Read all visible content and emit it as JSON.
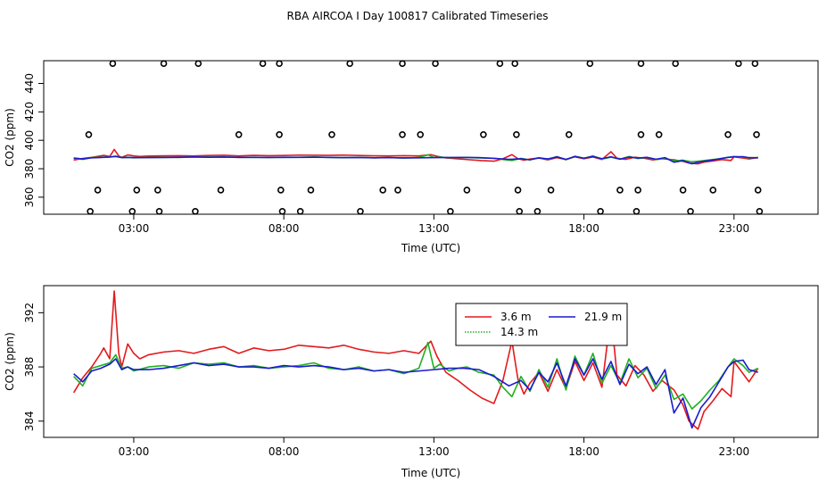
{
  "colors": {
    "red": "#e31a1c",
    "green": "#1fb11f",
    "blue": "#1a1ad0",
    "axis": "#000000"
  },
  "chart_data": [
    {
      "type": "scatter+line",
      "title": "RBA AIRCOA I  Day 100817  Calibrated Timeseries",
      "xlabel": "Time (UTC)",
      "ylabel": "CO2 (ppm)",
      "xlim": [
        0.0,
        25.8
      ],
      "ylim": [
        348,
        456
      ],
      "xticks": [
        3,
        8,
        13,
        18,
        23
      ],
      "xtick_labels": [
        "03:00",
        "08:00",
        "13:00",
        "18:00",
        "23:00"
      ],
      "yticks": [
        360,
        380,
        400,
        420,
        440
      ],
      "ytick_labels": [
        "360",
        "380",
        "400",
        "420",
        "440"
      ],
      "scatter": {
        "marker": "open-circle",
        "x": [
          2.3,
          4.0,
          5.15,
          7.3,
          7.85,
          10.2,
          11.95,
          13.05,
          15.2,
          15.7,
          18.2,
          19.9,
          21.05,
          23.15,
          23.7,
          1.5,
          6.5,
          7.85,
          9.6,
          11.95,
          12.55,
          14.65,
          15.75,
          17.5,
          19.9,
          20.5,
          22.8,
          23.75,
          1.8,
          3.1,
          3.8,
          5.9,
          7.9,
          8.9,
          11.3,
          11.8,
          14.1,
          15.8,
          16.9,
          19.2,
          19.8,
          21.3,
          22.3,
          23.8,
          1.55,
          2.95,
          3.85,
          5.05,
          7.95,
          8.55,
          10.55,
          13.55,
          15.85,
          16.45,
          18.55,
          19.75,
          21.55,
          23.85
        ],
        "y": [
          454,
          454,
          454,
          454,
          454,
          454,
          454,
          454,
          454,
          454,
          454,
          454,
          454,
          454,
          454,
          404,
          404,
          404,
          404,
          404,
          404,
          404,
          404,
          404,
          404,
          404,
          404,
          404,
          365,
          365,
          365,
          365,
          365,
          365,
          365,
          365,
          365,
          365,
          365,
          365,
          365,
          365,
          365,
          365,
          350,
          350,
          350,
          350,
          350,
          350,
          350,
          350,
          350,
          350,
          350,
          350,
          350,
          350
        ]
      },
      "series": [
        {
          "name": "3.6 m",
          "color": "#e31a1c"
        },
        {
          "name": "14.3 m",
          "color": "#1fb11f"
        },
        {
          "name": "21.9 m",
          "color": "#1a1ad0"
        }
      ]
    },
    {
      "type": "line",
      "title": "",
      "xlabel": "Time (UTC)",
      "ylabel": "CO2 (ppm)",
      "xlim": [
        0.0,
        25.8
      ],
      "ylim": [
        382.8,
        394.0
      ],
      "xticks": [
        3,
        8,
        13,
        18,
        23
      ],
      "xtick_labels": [
        "03:00",
        "08:00",
        "13:00",
        "18:00",
        "23:00"
      ],
      "yticks": [
        384,
        388,
        392
      ],
      "ytick_labels": [
        "384",
        "388",
        "392"
      ],
      "legend": {
        "position": "top-center",
        "entries": [
          "3.6 m",
          "21.9 m",
          "14.3 m"
        ]
      },
      "series": [
        {
          "name": "3.6 m",
          "color": "#e31a1c",
          "x": [
            1.0,
            1.3,
            1.6,
            1.9,
            2.0,
            2.2,
            2.35,
            2.5,
            2.6,
            2.8,
            3.0,
            3.2,
            3.5,
            4.0,
            4.5,
            5.0,
            5.5,
            6.0,
            6.5,
            7.0,
            7.5,
            8.0,
            8.5,
            9.0,
            9.5,
            10.0,
            10.5,
            11.0,
            11.5,
            12.0,
            12.5,
            12.9,
            13.1,
            13.4,
            13.8,
            14.2,
            14.6,
            15.0,
            15.3,
            15.6,
            15.8,
            16.0,
            16.2,
            16.5,
            16.8,
            17.1,
            17.4,
            17.7,
            18.0,
            18.3,
            18.6,
            18.9,
            19.1,
            19.4,
            19.7,
            20.0,
            20.3,
            20.6,
            21.0,
            21.3,
            21.5,
            21.8,
            22.0,
            22.3,
            22.6,
            22.9,
            23.0,
            23.3,
            23.5,
            23.8
          ],
          "y": [
            386.1,
            387.2,
            388.0,
            389.0,
            389.4,
            388.6,
            393.6,
            389.0,
            388.0,
            389.7,
            389.0,
            388.6,
            388.9,
            389.1,
            389.2,
            389.0,
            389.3,
            389.5,
            389.0,
            389.4,
            389.2,
            389.3,
            389.6,
            389.5,
            389.4,
            389.6,
            389.3,
            389.1,
            389.0,
            389.2,
            389.0,
            389.9,
            388.8,
            387.6,
            387.0,
            386.3,
            385.7,
            385.3,
            387.0,
            389.9,
            387.1,
            386.0,
            386.8,
            387.6,
            386.2,
            387.8,
            386.4,
            388.4,
            387.0,
            388.3,
            386.5,
            392.0,
            387.4,
            386.6,
            388.1,
            387.4,
            386.2,
            387.0,
            386.3,
            385.2,
            384.0,
            383.4,
            384.7,
            385.5,
            386.4,
            385.8,
            388.4,
            387.5,
            386.9,
            387.9
          ]
        },
        {
          "name": "14.3 m",
          "color": "#1fb11f",
          "x": [
            1.0,
            1.3,
            1.6,
            1.9,
            2.2,
            2.4,
            2.6,
            2.8,
            3.0,
            3.5,
            4.0,
            4.5,
            5.0,
            5.5,
            6.0,
            6.5,
            7.0,
            7.5,
            8.0,
            8.5,
            9.0,
            9.5,
            10.0,
            10.5,
            11.0,
            11.5,
            12.0,
            12.5,
            12.8,
            13.0,
            13.2,
            13.5,
            13.8,
            14.1,
            14.5,
            15.0,
            15.3,
            15.6,
            15.9,
            16.2,
            16.5,
            16.8,
            17.1,
            17.4,
            17.7,
            18.0,
            18.3,
            18.6,
            18.9,
            19.2,
            19.5,
            19.8,
            20.1,
            20.4,
            20.7,
            21.0,
            21.3,
            21.6,
            21.9,
            22.2,
            22.5,
            22.8,
            23.0,
            23.3,
            23.5,
            23.8
          ],
          "y": [
            387.3,
            386.6,
            387.9,
            388.1,
            388.3,
            388.9,
            387.9,
            388.0,
            387.7,
            388.0,
            388.1,
            387.9,
            388.3,
            388.2,
            388.3,
            388.0,
            388.1,
            387.9,
            388.0,
            388.1,
            388.3,
            387.9,
            387.8,
            388.0,
            387.7,
            387.8,
            387.5,
            387.9,
            389.8,
            387.9,
            388.2,
            387.7,
            387.9,
            388.0,
            387.6,
            387.4,
            386.5,
            385.8,
            387.3,
            386.2,
            387.8,
            386.5,
            388.6,
            386.3,
            388.8,
            387.4,
            389.0,
            386.8,
            388.1,
            386.8,
            388.6,
            387.2,
            387.9,
            386.4,
            387.4,
            385.6,
            386.0,
            384.9,
            385.5,
            386.3,
            387.0,
            388.0,
            388.6,
            388.1,
            387.6,
            387.9
          ]
        },
        {
          "name": "21.9 m",
          "color": "#1a1ad0",
          "x": [
            1.0,
            1.3,
            1.6,
            1.9,
            2.2,
            2.4,
            2.6,
            2.8,
            3.0,
            3.5,
            4.0,
            4.5,
            5.0,
            5.5,
            6.0,
            6.5,
            7.0,
            7.5,
            8.0,
            8.5,
            9.0,
            9.5,
            10.0,
            10.5,
            11.0,
            11.5,
            12.0,
            12.5,
            13.0,
            13.5,
            14.0,
            14.5,
            15.0,
            15.5,
            15.9,
            16.2,
            16.5,
            16.8,
            17.1,
            17.4,
            17.7,
            18.0,
            18.3,
            18.6,
            18.9,
            19.2,
            19.5,
            19.8,
            20.1,
            20.4,
            20.7,
            21.0,
            21.3,
            21.6,
            21.9,
            22.2,
            22.5,
            22.8,
            23.0,
            23.3,
            23.5,
            23.8
          ],
          "y": [
            387.5,
            386.9,
            387.7,
            387.9,
            388.2,
            388.6,
            387.8,
            388.0,
            387.8,
            387.8,
            387.9,
            388.1,
            388.3,
            388.1,
            388.2,
            388.0,
            388.0,
            387.9,
            388.1,
            388.0,
            388.1,
            388.0,
            387.8,
            387.9,
            387.7,
            387.8,
            387.6,
            387.7,
            387.8,
            387.9,
            387.9,
            387.8,
            387.3,
            386.6,
            387.0,
            386.3,
            387.6,
            386.9,
            388.3,
            386.6,
            388.6,
            387.4,
            388.6,
            387.1,
            388.4,
            386.7,
            388.2,
            387.5,
            388.0,
            386.7,
            387.8,
            384.6,
            385.7,
            383.5,
            385.0,
            385.8,
            386.9,
            388.0,
            388.4,
            388.5,
            387.8,
            387.6
          ]
        }
      ]
    }
  ]
}
